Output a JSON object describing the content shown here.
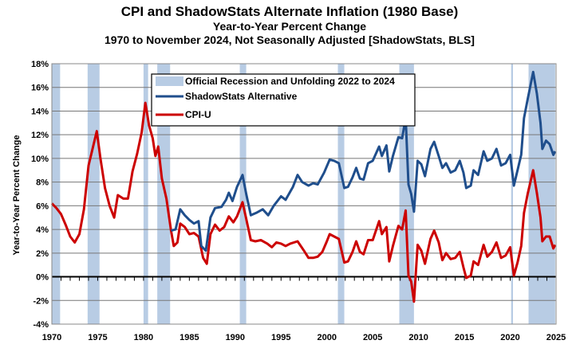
{
  "chart_data": {
    "type": "line",
    "title": "CPI and ShadowStats Alternate Inflation (1980 Base)",
    "subtitle": "Year-to-Year Percent Change",
    "subtitle2": "1970 to November 2024, Not Seasonally Adjusted  [ShadowStats, BLS]",
    "xlabel": "",
    "ylabel": "Year-to-Year Percent Change",
    "xlim": [
      1970,
      2025
    ],
    "ylim": [
      -4,
      18
    ],
    "x_ticks": [
      "1970",
      "1975",
      "1980",
      "1985",
      "1990",
      "1995",
      "2000",
      "2005",
      "2010",
      "2015",
      "2020",
      "2025"
    ],
    "y_ticks": [
      "-4%",
      "-2%",
      "0%",
      "2%",
      "4%",
      "6%",
      "8%",
      "10%",
      "12%",
      "14%",
      "16%",
      "18%"
    ],
    "grid": "horizontal",
    "legend_position": "top-center",
    "recession_label": "Official Recession and Unfolding 2022 to 2024",
    "recession_color": "#b8cce4",
    "recessions": [
      [
        1970.0,
        1970.9
      ],
      [
        1973.9,
        1975.2
      ],
      [
        1980.0,
        1980.5
      ],
      [
        1981.5,
        1982.9
      ],
      [
        1990.5,
        1991.2
      ],
      [
        2001.2,
        2001.9
      ],
      [
        2007.9,
        2009.5
      ],
      [
        2020.1,
        2020.3
      ],
      [
        2022.0,
        2024.9
      ]
    ],
    "series": [
      {
        "name": "ShadowStats Alternative",
        "color": "#1f4e8c",
        "x": [
          1983,
          1983.5,
          1984,
          1984.5,
          1985,
          1985.5,
          1986,
          1986.3,
          1986.8,
          1987.3,
          1987.8,
          1988.5,
          1989,
          1989.3,
          1989.7,
          1990.2,
          1990.8,
          1991.2,
          1991.7,
          1992.3,
          1993,
          1993.6,
          1994.2,
          1995,
          1995.5,
          1996.3,
          1996.8,
          1997.3,
          1998,
          1998.5,
          1999,
          1999.7,
          2000.3,
          2000.8,
          2001.3,
          2001.9,
          2002.3,
          2002.8,
          2003.2,
          2003.6,
          2004,
          2004.5,
          2005,
          2005.7,
          2006,
          2006.5,
          2006.8,
          2007.2,
          2007.8,
          2008.2,
          2008.6,
          2008.9,
          2009.2,
          2009.5,
          2009.9,
          2010.3,
          2010.7,
          2011.3,
          2011.7,
          2012.2,
          2012.6,
          2013,
          2013.5,
          2014,
          2014.5,
          2014.9,
          2015.2,
          2015.7,
          2016,
          2016.5,
          2017.1,
          2017.5,
          2018,
          2018.5,
          2019,
          2019.5,
          2020,
          2020.4,
          2020.8,
          2021.2,
          2021.5,
          2021.9,
          2022.5,
          2022.9,
          2023.3,
          2023.5,
          2023.9,
          2024.3,
          2024.7,
          2024.9
        ],
        "y": [
          3.9,
          4.0,
          5.7,
          5.2,
          4.8,
          4.5,
          4.7,
          2.6,
          2.2,
          5.0,
          5.8,
          5.9,
          6.5,
          7.1,
          6.4,
          7.6,
          8.6,
          7.0,
          5.2,
          5.4,
          5.7,
          5.2,
          6.0,
          6.8,
          6.5,
          7.6,
          8.6,
          8.0,
          7.7,
          7.9,
          7.8,
          8.8,
          9.9,
          9.8,
          9.6,
          7.5,
          7.6,
          8.4,
          9.2,
          8.3,
          8.2,
          9.6,
          9.8,
          11.0,
          10.2,
          11.1,
          8.9,
          10.2,
          11.8,
          11.7,
          13.4,
          7.8,
          7.0,
          5.5,
          9.8,
          9.5,
          8.5,
          10.8,
          11.4,
          10.2,
          9.2,
          9.6,
          8.8,
          9.0,
          9.8,
          8.8,
          7.5,
          7.7,
          9.0,
          8.6,
          10.6,
          9.8,
          10.0,
          10.8,
          9.4,
          9.6,
          10.3,
          7.7,
          9.0,
          10.3,
          13.4,
          15.0,
          17.3,
          15.5,
          13.0,
          10.8,
          11.5,
          11.2,
          10.3,
          10.6
        ]
      },
      {
        "name": "CPI-U",
        "color": "#cc0000",
        "x": [
          1970,
          1970.5,
          1971,
          1971.5,
          1972,
          1972.5,
          1973,
          1973.5,
          1974,
          1974.5,
          1974.9,
          1975.3,
          1975.8,
          1976.3,
          1976.8,
          1977.2,
          1977.8,
          1978.3,
          1978.8,
          1979.3,
          1979.8,
          1980.2,
          1980.6,
          1981,
          1981.3,
          1981.6,
          1982,
          1982.5,
          1983,
          1983.3,
          1983.7,
          1984,
          1984.5,
          1985,
          1985.5,
          1986,
          1986.5,
          1986.9,
          1987.3,
          1987.8,
          1988.3,
          1988.8,
          1989.3,
          1989.8,
          1990.2,
          1990.8,
          1991.2,
          1991.7,
          1992.2,
          1992.8,
          1993.5,
          1994,
          1994.5,
          1995,
          1995.5,
          1996,
          1996.8,
          1997.5,
          1998,
          1998.5,
          1999,
          1999.5,
          2000,
          2000.3,
          2000.8,
          2001.3,
          2001.9,
          2002.3,
          2002.8,
          2003.2,
          2003.6,
          2004,
          2004.5,
          2005,
          2005.7,
          2006,
          2006.5,
          2006.8,
          2007.2,
          2007.8,
          2008.2,
          2008.6,
          2008.9,
          2009.2,
          2009.5,
          2009.9,
          2010.3,
          2010.7,
          2011.3,
          2011.7,
          2012.2,
          2012.6,
          2013,
          2013.5,
          2014,
          2014.5,
          2014.9,
          2015.2,
          2015.7,
          2016,
          2016.5,
          2017.1,
          2017.5,
          2018,
          2018.5,
          2019,
          2019.5,
          2020,
          2020.4,
          2020.8,
          2021.2,
          2021.5,
          2021.9,
          2022.5,
          2022.9,
          2023.3,
          2023.5,
          2023.9,
          2024.3,
          2024.7,
          2024.9
        ],
        "y": [
          6.2,
          5.8,
          5.3,
          4.4,
          3.4,
          2.9,
          3.6,
          5.7,
          9.4,
          11.0,
          12.3,
          10.0,
          7.5,
          6.0,
          5.0,
          6.9,
          6.6,
          6.6,
          8.9,
          10.4,
          12.2,
          14.7,
          12.8,
          11.7,
          10.2,
          11.0,
          8.3,
          6.6,
          3.9,
          2.6,
          2.9,
          4.5,
          4.2,
          3.6,
          3.7,
          3.4,
          1.6,
          1.1,
          3.6,
          4.4,
          3.9,
          4.2,
          5.1,
          4.6,
          5.1,
          6.3,
          4.9,
          3.1,
          3.0,
          3.1,
          2.8,
          2.5,
          2.9,
          2.8,
          2.6,
          2.8,
          3.0,
          2.2,
          1.6,
          1.6,
          1.7,
          2.1,
          3.0,
          3.6,
          3.4,
          3.2,
          1.2,
          1.3,
          2.1,
          3.0,
          2.1,
          1.9,
          3.1,
          3.1,
          4.7,
          3.6,
          4.2,
          1.3,
          2.6,
          4.3,
          4.0,
          5.6,
          0.1,
          -0.4,
          -2.1,
          2.7,
          2.2,
          1.1,
          3.2,
          3.9,
          2.9,
          1.4,
          2.0,
          1.5,
          1.6,
          2.1,
          0.8,
          -0.1,
          0.1,
          1.3,
          1.0,
          2.7,
          1.7,
          2.1,
          2.9,
          1.6,
          1.8,
          2.5,
          0.1,
          1.2,
          2.6,
          5.4,
          7.0,
          9.0,
          7.1,
          5.0,
          3.0,
          3.4,
          3.4,
          2.4,
          2.7
        ]
      }
    ]
  }
}
